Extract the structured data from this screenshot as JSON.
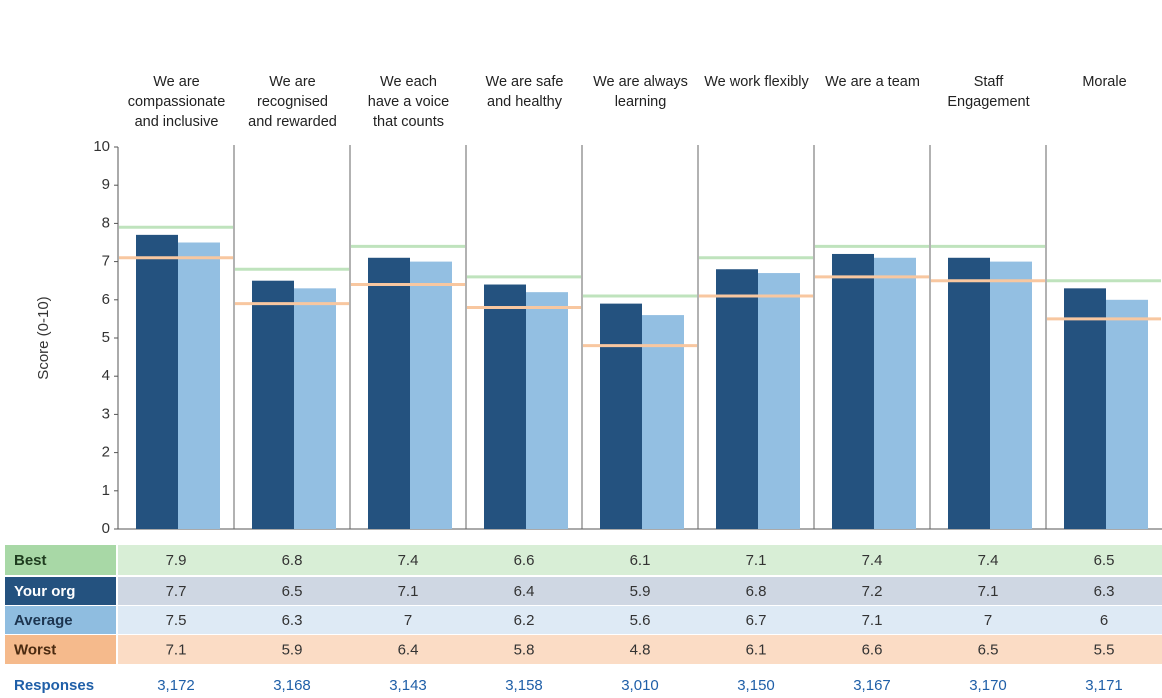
{
  "chart_data": {
    "type": "bar",
    "y_label": "Score (0-10)",
    "categories": [
      "We are\ncompassionate\nand inclusive",
      "We are\nrecognised\nand rewarded",
      "We each\nhave a voice\nthat counts",
      "We are safe\nand healthy",
      "We are always\nlearning",
      "We work flexibly",
      "We are a team",
      "Staff\nEngagement",
      "Morale"
    ],
    "ylim": [
      0,
      10
    ],
    "yticks": [
      0,
      1,
      2,
      3,
      4,
      5,
      6,
      7,
      8,
      9,
      10
    ],
    "series": [
      {
        "name": "Best",
        "mark": "line",
        "color": "#bfe3bd",
        "label_color": "#a8d8a6",
        "cell_color": "#d8eed6",
        "text_color": "#1f3d1f",
        "values": [
          7.9,
          6.8,
          7.4,
          6.6,
          6.1,
          7.1,
          7.4,
          7.4,
          6.5
        ]
      },
      {
        "name": "Your org",
        "mark": "bar",
        "color": "#24527f",
        "label_color": "#24527f",
        "cell_color": "#cfd7e3",
        "text_color": "#ffffff",
        "values": [
          7.7,
          6.5,
          7.1,
          6.4,
          5.9,
          6.8,
          7.2,
          7.1,
          6.3
        ]
      },
      {
        "name": "Average",
        "mark": "bar",
        "color": "#93bfe2",
        "label_color": "#8fbde0",
        "cell_color": "#deeaf5",
        "text_color": "#1d3550",
        "values": [
          7.5,
          6.3,
          7.0,
          6.2,
          5.6,
          6.7,
          7.1,
          7.0,
          6.0
        ]
      },
      {
        "name": "Worst",
        "mark": "line",
        "color": "#f8c7a0",
        "label_color": "#f5ba8c",
        "cell_color": "#fbdcc5",
        "text_color": "#4a2a10",
        "values": [
          7.1,
          5.9,
          6.4,
          5.8,
          4.8,
          6.1,
          6.6,
          6.5,
          5.5
        ]
      }
    ],
    "responses": {
      "label": "Responses",
      "values": [
        "3,172",
        "3,168",
        "3,143",
        "3,158",
        "3,010",
        "3,150",
        "3,167",
        "3,170",
        "3,171"
      ]
    }
  }
}
